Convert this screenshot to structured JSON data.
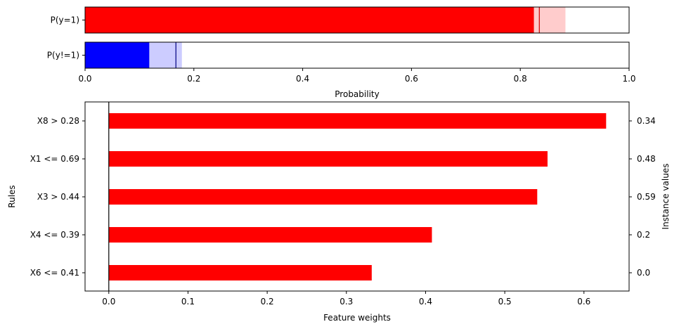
{
  "chart_data": [
    {
      "type": "bar",
      "orientation": "horizontal",
      "categories": [
        "P(y=1)",
        "P(y!=1)"
      ],
      "series": [
        {
          "values": [
            0.825,
            0.118
          ],
          "interval_low": [
            0.76,
            0.0
          ],
          "interval_high": [
            0.883,
            0.178
          ],
          "point_estimate": [
            0.835,
            0.167
          ]
        }
      ],
      "colors": {
        "P(y=1)": "#ff0000",
        "P(y!=1)": "#0000ff"
      },
      "xlabel": "Probability",
      "xlim": [
        0.0,
        1.0
      ],
      "xticks": [
        "0.0",
        "0.2",
        "0.4",
        "0.6",
        "0.8",
        "1.0"
      ],
      "grid": false
    },
    {
      "type": "bar",
      "orientation": "horizontal",
      "categories": [
        "X8 > 0.28",
        "X1 <= 0.69",
        "X3 > 0.44",
        "X4 <= 0.39",
        "X6 <= 0.41"
      ],
      "values": [
        0.628,
        0.554,
        0.541,
        0.408,
        0.332
      ],
      "instance_values": [
        "0.34",
        "0.48",
        "0.59",
        "0.2",
        "0.0"
      ],
      "bar_color": "#ff0000",
      "xlabel": "Feature weights",
      "ylabel": "Rules",
      "ylabel_right": "Instance values",
      "xlim": [
        -0.03,
        0.657
      ],
      "xticks": [
        "0.0",
        "0.1",
        "0.2",
        "0.3",
        "0.4",
        "0.5",
        "0.6"
      ],
      "zero_line": true,
      "grid": false
    }
  ]
}
